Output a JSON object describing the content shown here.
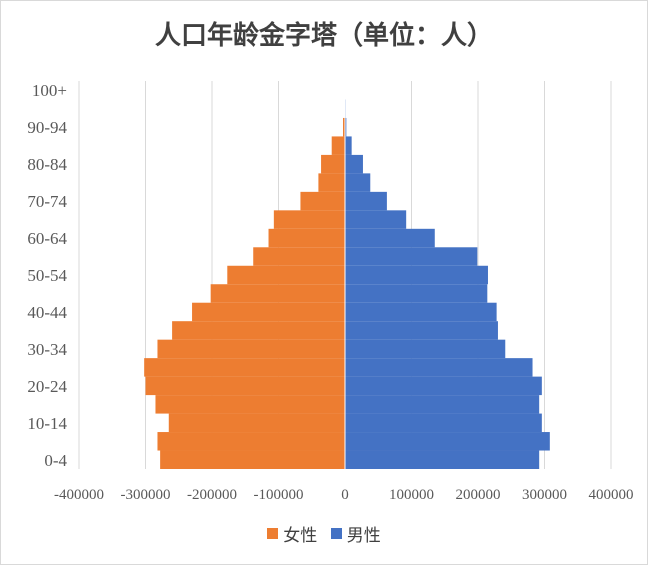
{
  "chart_data": {
    "type": "bar",
    "orientation": "horizontal-population-pyramid",
    "title": "人口年龄金字塔（单位：人）",
    "categories": [
      "0-4",
      "5-9",
      "10-14",
      "15-19",
      "20-24",
      "25-29",
      "30-34",
      "35-39",
      "40-44",
      "45-49",
      "50-54",
      "55-59",
      "60-64",
      "65-69",
      "70-74",
      "75-79",
      "80-84",
      "85-89",
      "90-94",
      "95-99",
      "100+"
    ],
    "category_tick_labels": [
      "0-4",
      "10-14",
      "20-24",
      "30-34",
      "40-44",
      "50-54",
      "60-64",
      "70-74",
      "80-84",
      "90-94",
      "100+"
    ],
    "series": [
      {
        "name": "女性",
        "color": "#ED7D31",
        "values": [
          -278000,
          -282000,
          -265000,
          -285000,
          -300000,
          -302000,
          -282000,
          -260000,
          -230000,
          -202000,
          -177000,
          -138000,
          -115000,
          -107000,
          -67000,
          -40000,
          -36000,
          -20000,
          -3000,
          -500,
          -100
        ]
      },
      {
        "name": "男性",
        "color": "#4472C4",
        "values": [
          292000,
          308000,
          296000,
          292000,
          296000,
          282000,
          241000,
          230000,
          228000,
          214000,
          215000,
          199000,
          135000,
          92000,
          63000,
          38000,
          27000,
          10000,
          2000,
          1000,
          200
        ]
      }
    ],
    "x_ticks": [
      "-400000",
      "-300000",
      "-200000",
      "-100000",
      "0",
      "100000",
      "200000",
      "300000",
      "400000"
    ],
    "xlim": [
      -400000,
      400000
    ],
    "grid": "vertical",
    "legend_position": "bottom"
  }
}
